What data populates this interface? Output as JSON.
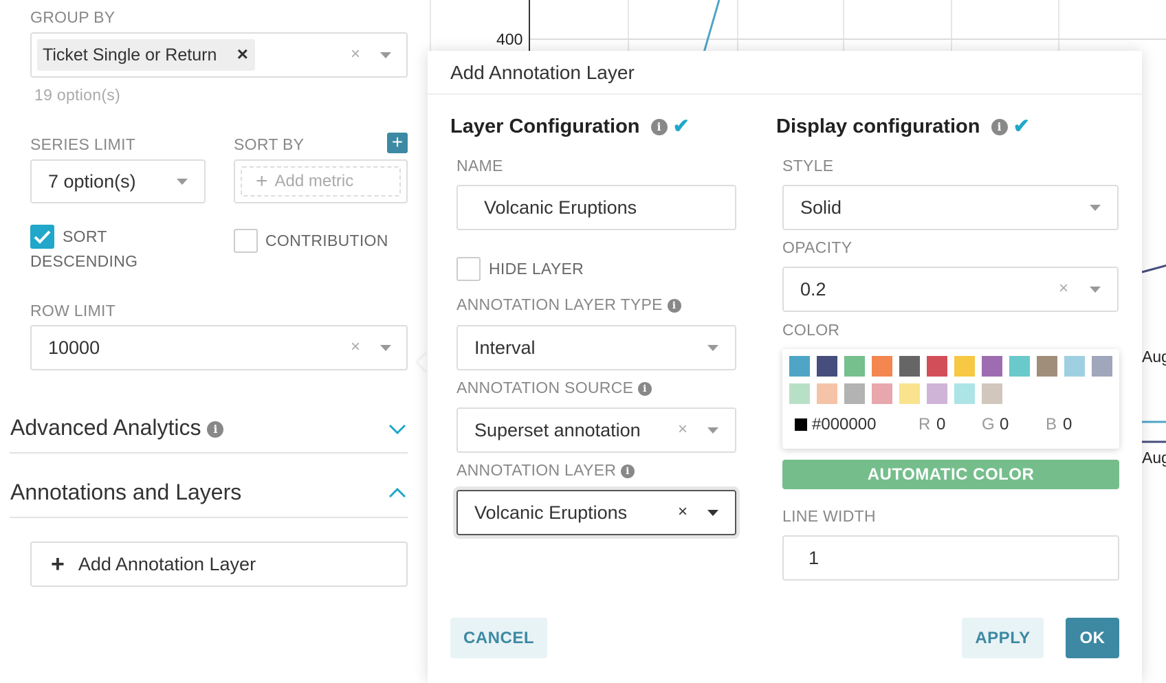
{
  "controls": {
    "group_by": {
      "label": "GROUP BY",
      "tag": "Ticket Single or Return",
      "options_count": "19 option(s)"
    },
    "series_limit": {
      "label": "SERIES LIMIT",
      "value": "7 option(s)"
    },
    "sort_by": {
      "label": "SORT BY",
      "placeholder": "Add metric"
    },
    "sort_descending": {
      "label_line1": "SORT",
      "label_line2": "DESCENDING",
      "checked": true
    },
    "contribution": {
      "label": "CONTRIBUTION",
      "checked": false
    },
    "row_limit": {
      "label": "ROW LIMIT",
      "value": "10000"
    },
    "sections": [
      {
        "label": "Advanced Analytics",
        "expanded": false
      },
      {
        "label": "Annotations and Layers",
        "expanded": true
      }
    ],
    "add_annotation_layer": "Add Annotation Layer"
  },
  "chart": {
    "y_tick": "400",
    "x_ticks": [
      "Aug",
      "Aug"
    ],
    "colors": {
      "series1": "#4fa5c6",
      "series2": "#454e7c"
    }
  },
  "modal": {
    "title": "Add Annotation Layer",
    "layer_config": {
      "heading": "Layer Configuration",
      "name_label": "NAME",
      "name_value": "Volcanic Eruptions",
      "hide_layer_label": "HIDE LAYER",
      "hide_layer": false,
      "type_label": "ANNOTATION LAYER TYPE",
      "type_value": "Interval",
      "source_label": "ANNOTATION SOURCE",
      "source_value": "Superset annotation",
      "layer_label": "ANNOTATION LAYER",
      "layer_value": "Volcanic Eruptions"
    },
    "display_config": {
      "heading": "Display configuration",
      "style_label": "STYLE",
      "style_value": "Solid",
      "opacity_label": "OPACITY",
      "opacity_value": "0.2",
      "color_label": "COLOR",
      "swatches": [
        "#4fa5c6",
        "#454e7c",
        "#76c08e",
        "#f3874f",
        "#666666",
        "#d24f59",
        "#f7c843",
        "#9e6db1",
        "#6ac9ca",
        "#a18e7a",
        "#9fd0e1",
        "#a0a6bb",
        "#b8e0c6",
        "#f5c3a7",
        "#b3b3b3",
        "#e7a7ac",
        "#f9e38e",
        "#cfb4d8",
        "#ade4e5",
        "#d1c7bc"
      ],
      "hex": "#000000",
      "r_label": "R",
      "r": "0",
      "g_label": "G",
      "g": "0",
      "b_label": "B",
      "b": "0",
      "automatic_color": "AUTOMATIC COLOR",
      "line_width_label": "LINE WIDTH",
      "line_width_value": "1"
    },
    "buttons": {
      "cancel": "CANCEL",
      "apply": "APPLY",
      "ok": "OK"
    },
    "colors": {
      "primary": "#3d89a3",
      "accent": "#20a7c9",
      "auto": "#75be8c"
    }
  }
}
